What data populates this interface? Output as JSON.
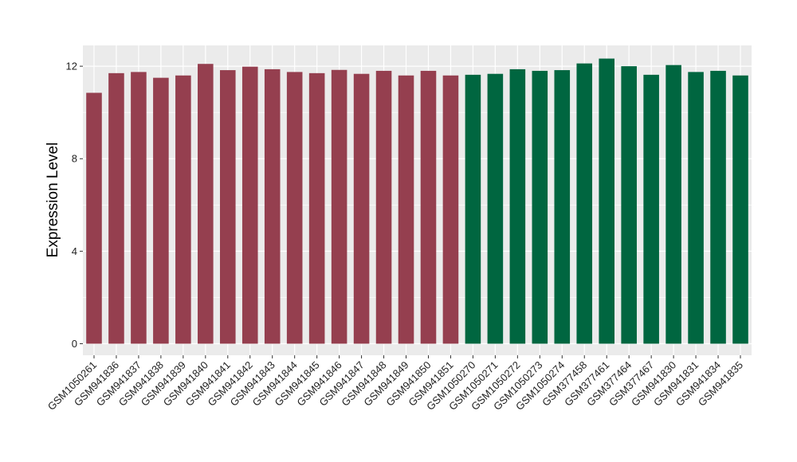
{
  "chart_data": {
    "type": "bar",
    "title": "",
    "xlabel": "",
    "ylabel": "Expression Level",
    "ylim": [
      -0.5,
      12.9
    ],
    "yticks": [
      0,
      4,
      8,
      12
    ],
    "grid": true,
    "legend": "none",
    "categories": [
      "GSM1050261",
      "GSM941836",
      "GSM941837",
      "GSM941838",
      "GSM941839",
      "GSM941840",
      "GSM941841",
      "GSM941842",
      "GSM941843",
      "GSM941844",
      "GSM941845",
      "GSM941846",
      "GSM941847",
      "GSM941848",
      "GSM941849",
      "GSM941850",
      "GSM941851",
      "GSM1050270",
      "GSM1050271",
      "GSM1050272",
      "GSM1050273",
      "GSM1050274",
      "GSM377458",
      "GSM377461",
      "GSM377464",
      "GSM377467",
      "GSM941830",
      "GSM941831",
      "GSM941834",
      "GSM941835"
    ],
    "values": [
      10.85,
      11.7,
      11.75,
      11.5,
      11.6,
      12.1,
      11.83,
      11.98,
      11.87,
      11.75,
      11.7,
      11.84,
      11.67,
      11.8,
      11.6,
      11.8,
      11.6,
      11.63,
      11.67,
      11.87,
      11.8,
      11.83,
      12.12,
      12.33,
      12.0,
      11.63,
      12.05,
      11.75,
      11.8,
      11.6
    ],
    "groups": [
      0,
      0,
      0,
      0,
      0,
      0,
      0,
      0,
      0,
      0,
      0,
      0,
      0,
      0,
      0,
      0,
      0,
      1,
      1,
      1,
      1,
      1,
      1,
      1,
      1,
      1,
      1,
      1,
      1,
      1
    ],
    "group_colors": [
      "#953f4f",
      "#006640"
    ],
    "panel_background": "#ebebeb",
    "grid_color": "#ffffff"
  }
}
